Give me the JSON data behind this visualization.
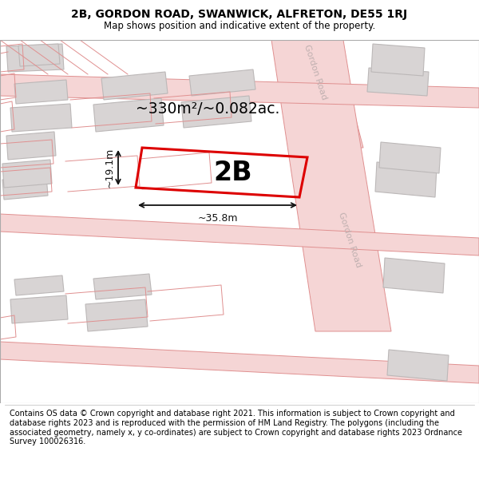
{
  "title_line1": "2B, GORDON ROAD, SWANWICK, ALFRETON, DE55 1RJ",
  "title_line2": "Map shows position and indicative extent of the property.",
  "footer": "Contains OS data © Crown copyright and database right 2021. This information is subject to Crown copyright and database rights 2023 and is reproduced with the permission of HM Land Registry. The polygons (including the associated geometry, namely x, y co-ordinates) are subject to Crown copyright and database rights 2023 Ordnance Survey 100026316.",
  "area_label": "~330m²/~0.082ac.",
  "label_2b": "2B",
  "width_label": "~35.8m",
  "height_label": "~19.1m",
  "road_label_top": "Gordon Road",
  "road_label_bottom": "Gordon Road",
  "road_color": "#f5d5d5",
  "road_edge_color": "#e09090",
  "building_color": "#d8d4d4",
  "building_edge_color": "#bcb8b8",
  "plot_border_color": "#dd0000",
  "dim_color": "#111111",
  "road_text_color": "#c0b0b0",
  "map_bg": "#ffffff",
  "title_fontsize": 10,
  "subtitle_fontsize": 8.5,
  "footer_fontsize": 7.0
}
